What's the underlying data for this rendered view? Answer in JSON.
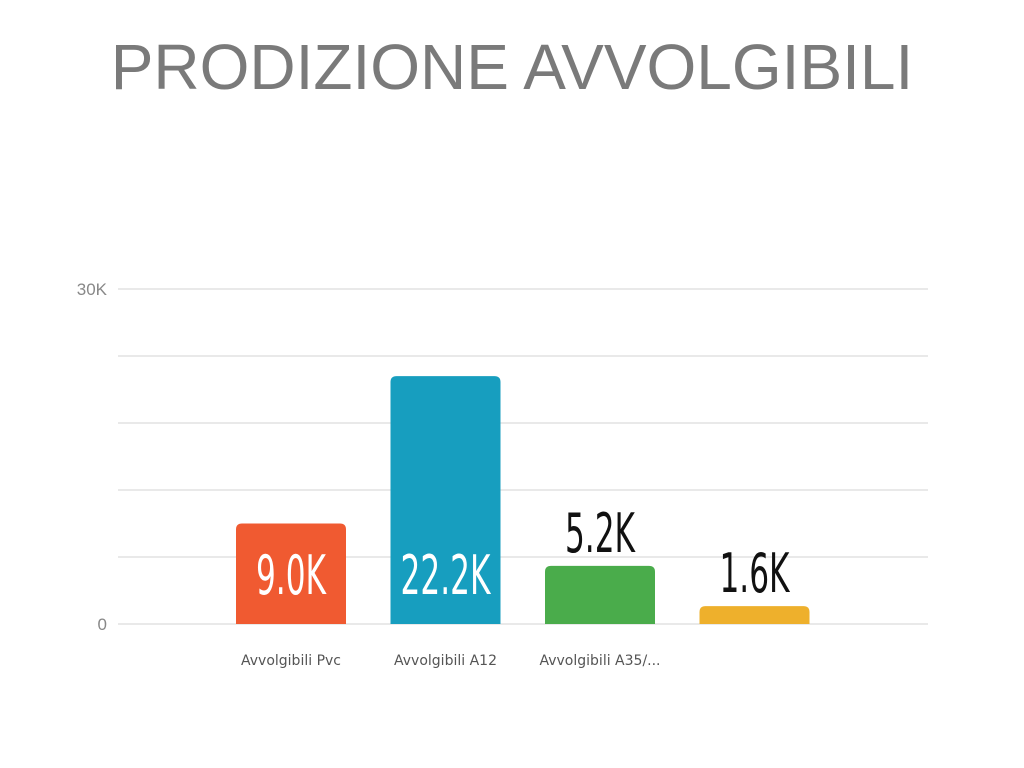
{
  "title": "PRODIZIONE AVVOLGIBILI",
  "chart_data": {
    "type": "bar",
    "title": "PRODIZIONE AVVOLGIBILI",
    "categories": [
      "Avvolgibili Pvc",
      "Avvolgibili A12",
      "Avvolgibili A35/...",
      ""
    ],
    "values": [
      9000,
      22200,
      5200,
      1600
    ],
    "data_labels": [
      "9.0K",
      "22.2K",
      "5.2K",
      "1.6K"
    ],
    "colors": [
      "#f05a31",
      "#179ebf",
      "#4aac4b",
      "#eeb02c"
    ],
    "label_colors": [
      "#ffffff",
      "#ffffff",
      "#111111",
      "#111111"
    ],
    "label_inside": [
      true,
      true,
      false,
      false
    ],
    "ylim": [
      0,
      30000
    ],
    "y_ticks": [
      {
        "value": 0,
        "label": "0"
      },
      {
        "value": 30000,
        "label": "30K"
      }
    ],
    "gridlines": [
      0,
      6000,
      12000,
      18000,
      24000,
      30000
    ],
    "grid": true,
    "xlabel": "",
    "ylabel": ""
  }
}
